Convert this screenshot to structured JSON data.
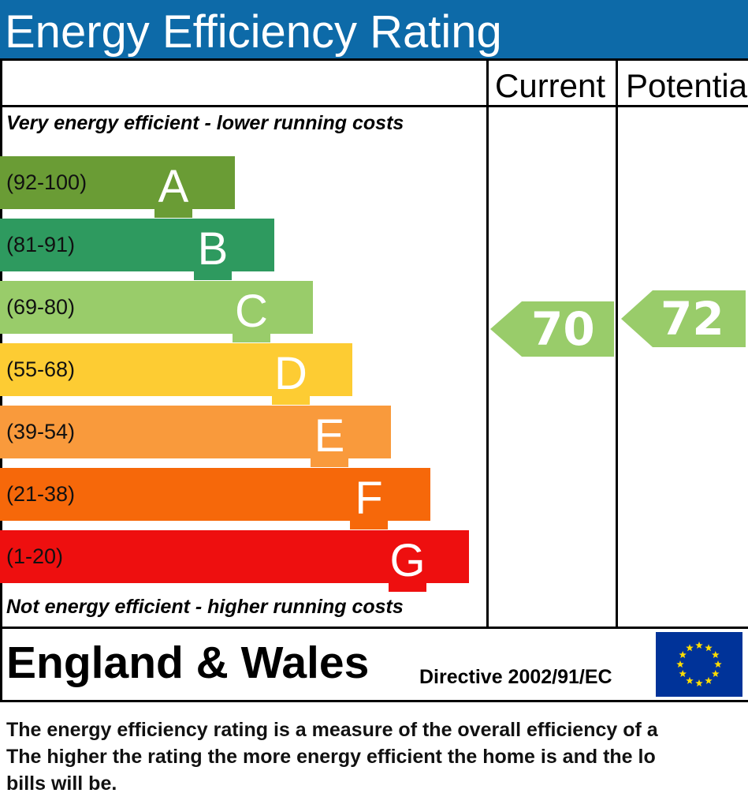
{
  "title": "Energy Efficiency Rating",
  "columns": {
    "current_label": "Current",
    "potential_label": "Potentia"
  },
  "captions": {
    "top": "Very energy efficient - lower running costs",
    "bottom": "Not energy efficient - higher running costs"
  },
  "bands": [
    {
      "range": "(92-100)",
      "letter": "A",
      "color": "#6a9c35"
    },
    {
      "range": "(81-91)",
      "letter": "B",
      "color": "#2e9a5f"
    },
    {
      "range": "(69-80)",
      "letter": "C",
      "color": "#99cc6a"
    },
    {
      "range": "(55-68)",
      "letter": "D",
      "color": "#fdcc33"
    },
    {
      "range": "(39-54)",
      "letter": "E",
      "color": "#f99a3c"
    },
    {
      "range": "(21-38)",
      "letter": "F",
      "color": "#f6680a"
    },
    {
      "range": "(1-20)",
      "letter": "G",
      "color": "#ee0f0f"
    }
  ],
  "ratings": {
    "current": {
      "value": "70",
      "color": "#99cc6a"
    },
    "potential": {
      "value": "72",
      "color": "#99cc6a"
    }
  },
  "footer": {
    "region": "England & Wales",
    "directive": "Directive 2002/91/EC",
    "flag_icon": "eu-flag-icon",
    "flag_color": "#003399",
    "star_color": "#ffdd00"
  },
  "note": {
    "line1": "The energy efficiency rating is a measure of the overall efficiency of a",
    "line2": "The higher the rating the more energy efficient the home is and the lo",
    "line3": "bills will be."
  }
}
